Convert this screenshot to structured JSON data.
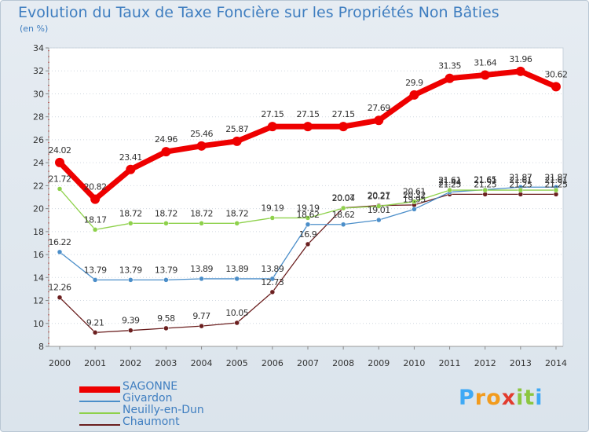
{
  "chart_data": {
    "type": "line",
    "title": "Evolution du Taux de Taxe Foncière sur les Propriétés Non Bâties",
    "ylabel": "(en %)",
    "xlabel": "",
    "categories": [
      "2000",
      "2001",
      "2002",
      "2003",
      "2004",
      "2005",
      "2006",
      "2007",
      "2008",
      "2009",
      "2010",
      "2011",
      "2012",
      "2013",
      "2014"
    ],
    "ylim": [
      8,
      34
    ],
    "yticks": [
      8,
      10,
      12,
      14,
      16,
      18,
      20,
      22,
      24,
      26,
      28,
      30,
      32,
      34
    ],
    "grid": true,
    "series": [
      {
        "name": "SAGONNE",
        "color": "#ee0000",
        "values": [
          24.02,
          20.82,
          23.41,
          24.96,
          25.46,
          25.87,
          27.15,
          27.15,
          27.15,
          27.69,
          29.9,
          31.35,
          31.64,
          31.96,
          30.62
        ],
        "labels": [
          "24.02",
          "20.82",
          "23.41",
          "24.96",
          "25.46",
          "25.87",
          "27.15",
          "27.15",
          "27.15",
          "27.69",
          "29.9",
          "31.35",
          "31.64",
          "31.96",
          "30.62"
        ]
      },
      {
        "name": "Givardon",
        "color": "#4b8ec9",
        "values": [
          16.22,
          13.79,
          13.79,
          13.79,
          13.89,
          13.89,
          13.89,
          18.62,
          18.62,
          19.01,
          19.95,
          21.44,
          21.65,
          21.87,
          21.87
        ],
        "labels": [
          "16.22",
          "13.79",
          "13.79",
          "13.79",
          "13.89",
          "13.89",
          "13.89",
          "18.62",
          "18.62",
          "19.01",
          "19.95",
          "21.44",
          "21.65",
          "21.87",
          "21.87"
        ]
      },
      {
        "name": "Neuilly-en-Dun",
        "color": "#8ed14b",
        "values": [
          21.72,
          18.17,
          18.72,
          18.72,
          18.72,
          18.72,
          19.19,
          19.19,
          20.04,
          20.21,
          20.61,
          21.61,
          21.61,
          21.61,
          21.61
        ],
        "labels": [
          "21.72",
          "18.17",
          "18.72",
          "18.72",
          "18.72",
          "18.72",
          "19.19",
          "19.19",
          "20.04",
          "20.21",
          "20.61",
          "21.61",
          "21.61",
          "21.61",
          "21.61"
        ]
      },
      {
        "name": "Chaumont",
        "color": "#6b1f1f",
        "values": [
          12.26,
          9.21,
          9.39,
          9.58,
          9.77,
          10.05,
          12.73,
          16.9,
          20.07,
          20.27,
          20.32,
          21.25,
          21.25,
          21.25,
          21.25
        ],
        "labels": [
          "12.26",
          "9.21",
          "9.39",
          "9.58",
          "9.77",
          "10.05",
          "12.73",
          "16.9",
          "20.07",
          "20.27",
          "20.32",
          "21.25",
          "21.25",
          "21.25",
          "21.25"
        ]
      }
    ]
  },
  "legend": {
    "items": [
      {
        "name": "SAGONNE",
        "color": "#ee0000"
      },
      {
        "name": "Givardon",
        "color": "#4b8ec9"
      },
      {
        "name": "Neuilly-en-Dun",
        "color": "#8ed14b"
      },
      {
        "name": "Chaumont",
        "color": "#6b1f1f"
      }
    ]
  },
  "logo": {
    "letters": [
      "P",
      "r",
      "o",
      "x",
      "i",
      "t",
      "i"
    ],
    "colors": [
      "#3fa9f5",
      "#f29b1d",
      "#f29b1d",
      "#e23b2e",
      "#8cc63f",
      "#8cc63f",
      "#3fa9f5"
    ]
  }
}
